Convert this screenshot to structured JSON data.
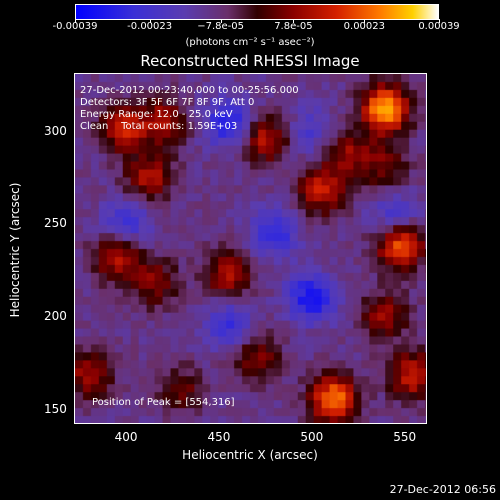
{
  "chart_data": {
    "type": "heatmap",
    "title": "Reconstructed RHESSI Image",
    "xlabel": "Heliocentric X (arcsec)",
    "ylabel": "Heliocentric Y (arcsec)",
    "xlim": [
      372,
      562
    ],
    "ylim": [
      142,
      331
    ],
    "x_ticks": [
      400,
      450,
      500,
      550
    ],
    "y_ticks": [
      150,
      200,
      250,
      300
    ],
    "colorbar": {
      "ticks": [
        "-0.00039",
        "-0.00023",
        "−7.8e-05",
        "7.8e-05",
        "0.00023",
        "0.00039"
      ],
      "tick_values": [
        -0.00039,
        -0.00023,
        -7.8e-05,
        7.8e-05,
        0.00023,
        0.00039
      ],
      "unit_label": "(photons cm⁻² s⁻¹ asec⁻²)"
    },
    "info_lines": [
      "27-Dec-2012 00:23:40.000 to 00:25:56.000",
      "Detectors: 3F 5F 6F 7F 8F 9F, Att 0",
      "Energy Range: 12.0 - 25.0 keV",
      "Clean    Total counts: 1.59E+03"
    ],
    "peak_label": "Position of Peak = [554,316]",
    "peak": [
      554,
      316
    ],
    "hotspots": [
      {
        "x": 540,
        "y": 312,
        "value": 0.00039
      },
      {
        "x": 512,
        "y": 155,
        "value": 0.00034
      },
      {
        "x": 548,
        "y": 238,
        "value": 0.0003
      },
      {
        "x": 398,
        "y": 302,
        "value": 0.00022
      },
      {
        "x": 412,
        "y": 275,
        "value": 0.0002
      },
      {
        "x": 420,
        "y": 305,
        "value": 0.00018
      },
      {
        "x": 475,
        "y": 296,
        "value": 0.0002
      },
      {
        "x": 506,
        "y": 268,
        "value": 0.00022
      },
      {
        "x": 520,
        "y": 288,
        "value": 0.00015
      },
      {
        "x": 395,
        "y": 232,
        "value": 0.0002
      },
      {
        "x": 455,
        "y": 222,
        "value": 0.00018
      },
      {
        "x": 415,
        "y": 218,
        "value": 0.00014
      },
      {
        "x": 380,
        "y": 168,
        "value": 0.00018
      },
      {
        "x": 470,
        "y": 178,
        "value": 0.00014
      },
      {
        "x": 540,
        "y": 200,
        "value": 0.00016
      },
      {
        "x": 555,
        "y": 168,
        "value": 0.00022
      },
      {
        "x": 430,
        "y": 160,
        "value": 0.0001
      },
      {
        "x": 540,
        "y": 280,
        "value": 0.00012
      },
      {
        "x": 455,
        "y": 305,
        "value": -0.00025
      },
      {
        "x": 500,
        "y": 210,
        "value": -0.00028
      },
      {
        "x": 480,
        "y": 245,
        "value": -0.00022
      },
      {
        "x": 400,
        "y": 250,
        "value": -0.0002
      },
      {
        "x": 455,
        "y": 195,
        "value": -0.0002
      },
      {
        "x": 500,
        "y": 300,
        "value": -0.00015
      },
      {
        "x": 545,
        "y": 255,
        "value": -0.00018
      }
    ]
  },
  "footer": {
    "timestamp": "27-Dec-2012 06:56"
  }
}
